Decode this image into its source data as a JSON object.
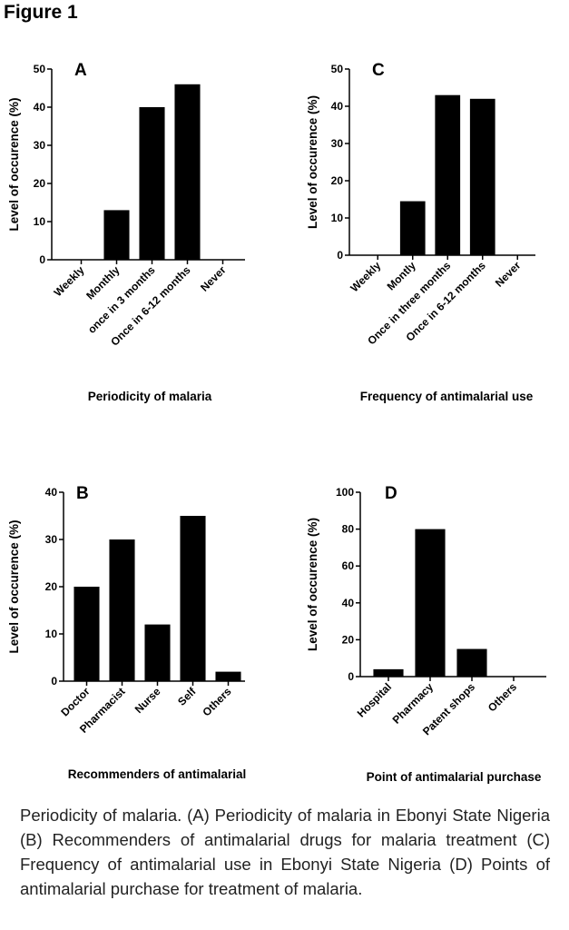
{
  "title": "Figure 1",
  "chart_data": [
    {
      "type": "bar",
      "panel": "A",
      "ylabel": "Level of occurence (%)",
      "xlabel": "Periodicity of malaria",
      "categories": [
        "Weekly",
        "Monthly",
        "once in 3 months",
        "Once in 6-12 months",
        "Never"
      ],
      "values": [
        0,
        13,
        40,
        46,
        0
      ],
      "color": "#000000",
      "ylim": [
        0,
        50
      ],
      "yticks": [
        0,
        10,
        20,
        30,
        40,
        50
      ]
    },
    {
      "type": "bar",
      "panel": "C",
      "ylabel": "Level of occurence (%)",
      "xlabel": "Frequency of antimalarial use",
      "categories": [
        "Weekly",
        "Montly",
        "Once in three months",
        "Once in 6-12 months",
        "Never"
      ],
      "values": [
        0,
        14.5,
        43,
        42,
        0
      ],
      "color": "#000000",
      "ylim": [
        0,
        50
      ],
      "yticks": [
        0,
        10,
        20,
        30,
        40,
        50
      ]
    },
    {
      "type": "bar",
      "panel": "B",
      "ylabel": "Level of occurence (%)",
      "xlabel": "Recommenders of antimalarial",
      "categories": [
        "Doctor",
        "Pharmacist",
        "Nurse",
        "Self",
        "Others"
      ],
      "values": [
        20,
        30,
        12,
        35,
        2
      ],
      "color": "#000000",
      "ylim": [
        0,
        40
      ],
      "yticks": [
        0,
        10,
        20,
        30,
        40
      ]
    },
    {
      "type": "bar",
      "panel": "D",
      "ylabel": "Level of occurence (%)",
      "xlabel": "Point of antimalarial purchase",
      "categories": [
        "Hospital",
        "Pharmacy",
        "Patent shops",
        "Others"
      ],
      "values": [
        4,
        80,
        15,
        0
      ],
      "color": "#000000",
      "ylim": [
        0,
        100
      ],
      "yticks": [
        0,
        20,
        40,
        60,
        80,
        100
      ]
    }
  ],
  "caption": "Periodicity of malaria. (A) Periodicity of malaria in Ebonyi State Nigeria (B) Recommenders of antimalarial drugs for malaria treatment (C) Frequency of antimalarial use in Ebonyi State Nigeria (D) Points of antimalarial purchase for treatment of malaria."
}
